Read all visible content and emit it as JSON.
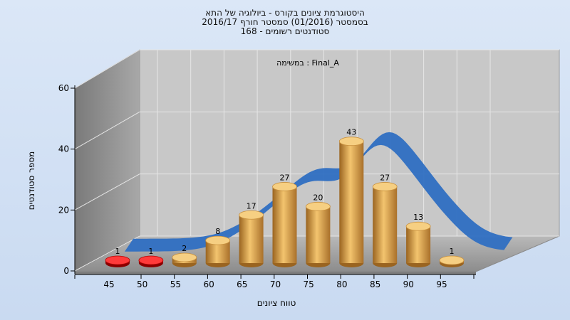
{
  "chart_data": {
    "type": "bar",
    "title_lines": [
      "היסטוגרמת ציונים בקורס - ביולוגיה של התא",
      "בסמסטר  (01/2016)  סמסטר חורף 2016/17",
      "168 - סטודנטים רשומים"
    ],
    "annotation": "במשימה : Final_A",
    "xlabel": "טווח ציונים",
    "ylabel": "מספר סטודנטים",
    "categories": [
      "45",
      "50",
      "55",
      "60",
      "65",
      "70",
      "75",
      "80",
      "85",
      "90",
      "95"
    ],
    "values": [
      1,
      1,
      2,
      8,
      17,
      27,
      20,
      43,
      27,
      13,
      1
    ],
    "bar_colors": [
      "#cc0000",
      "#cc0000",
      "#d9a050",
      "#d9a050",
      "#d9a050",
      "#d9a050",
      "#d9a050",
      "#d9a050",
      "#d9a050",
      "#d9a050",
      "#d9a050"
    ],
    "y_ticks": [
      "0",
      "20",
      "40",
      "60"
    ],
    "ylim": [
      0,
      60
    ],
    "curve_color": "#2f6fc2",
    "grid": true,
    "legend": "none"
  }
}
